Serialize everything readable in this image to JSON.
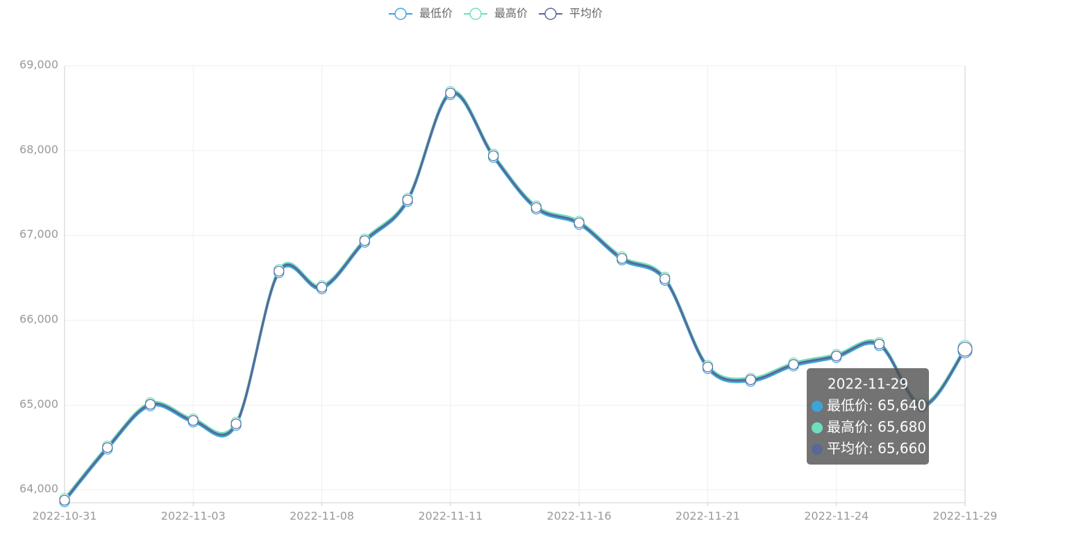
{
  "chart_data": {
    "type": "line",
    "categories": [
      "2022-10-31",
      null,
      null,
      "2022-11-03",
      null,
      null,
      "2022-11-08",
      null,
      null,
      "2022-11-11",
      null,
      null,
      "2022-11-16",
      null,
      null,
      "2022-11-21",
      null,
      null,
      "2022-11-24",
      null,
      null,
      "2022-11-29"
    ],
    "series": [
      {
        "name": "最低价",
        "color": "#3ba5dc",
        "values": [
          63860,
          64480,
          64990,
          64800,
          64760,
          66560,
          66370,
          66920,
          67400,
          68660,
          67920,
          67310,
          67130,
          66710,
          66470,
          65430,
          65280,
          65460,
          65560,
          65700,
          64980,
          65640
        ]
      },
      {
        "name": "最高价",
        "color": "#6ddfbf",
        "values": [
          63900,
          64520,
          65030,
          64840,
          64800,
          66600,
          66410,
          66960,
          67440,
          68700,
          67960,
          67350,
          67170,
          66750,
          66510,
          65470,
          65320,
          65500,
          65600,
          65740,
          65020,
          65680
        ]
      },
      {
        "name": "平均价",
        "color": "#5b6797",
        "values": [
          63880,
          64500,
          65010,
          64820,
          64780,
          66580,
          66390,
          66940,
          67420,
          68680,
          67940,
          67330,
          67150,
          66730,
          66490,
          65450,
          65300,
          65480,
          65580,
          65720,
          65000,
          65660
        ]
      }
    ],
    "ylim": [
      63850,
      69000
    ],
    "yticks": [
      {
        "value": 64000,
        "label": "64,000"
      },
      {
        "value": 65000,
        "label": "65,000"
      },
      {
        "value": 66000,
        "label": "66,000"
      },
      {
        "value": 67000,
        "label": "67,000"
      },
      {
        "value": 68000,
        "label": "68,000"
      },
      {
        "value": 69000,
        "label": "69,000"
      }
    ],
    "grid": true,
    "legend": "top",
    "tooltip": {
      "title": "2022-11-29",
      "lines": [
        "最低价: 65,640",
        "最高价: 65,680",
        "平均价: 65,660"
      ]
    }
  }
}
